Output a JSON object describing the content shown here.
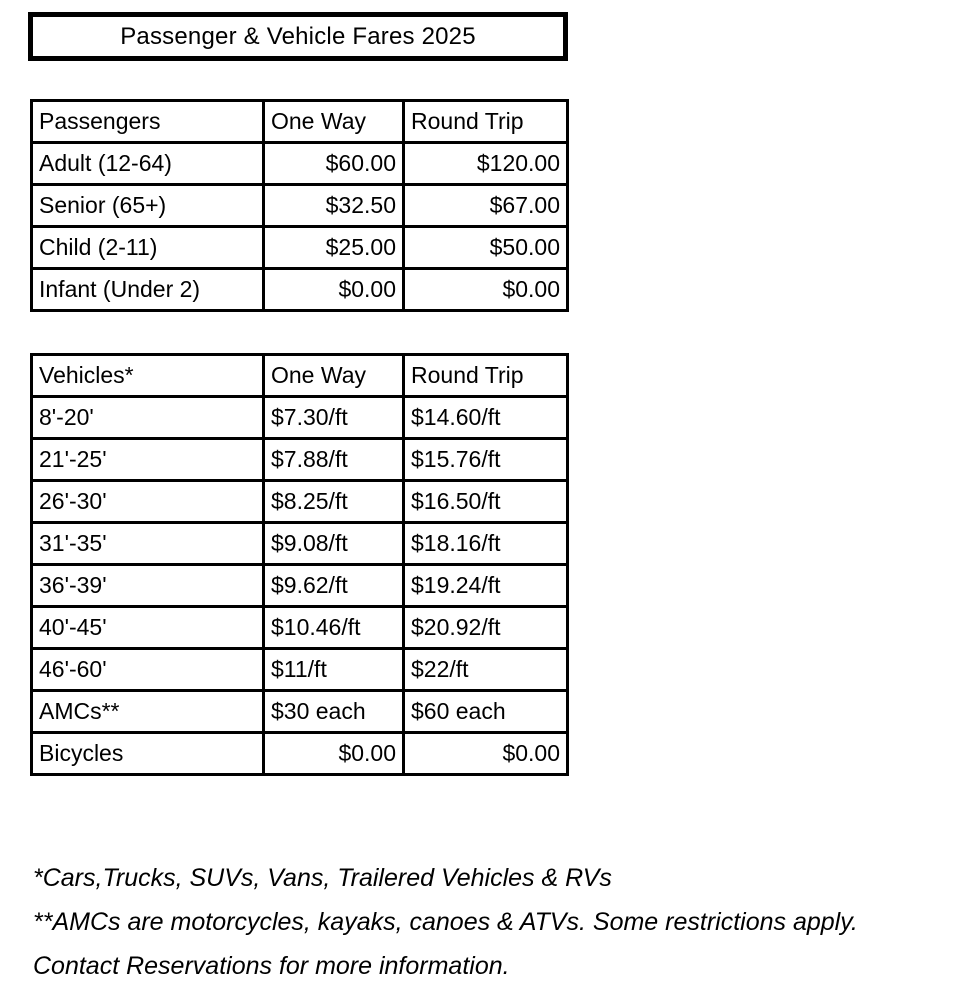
{
  "title": "Passenger & Vehicle Fares 2025",
  "passenger_table": {
    "headers": [
      "Passengers",
      "One Way",
      "Round Trip"
    ],
    "rows": [
      [
        "Adult (12-64)",
        "$60.00",
        "$120.00"
      ],
      [
        "Senior (65+)",
        "$32.50",
        "$67.00"
      ],
      [
        "Child (2-11)",
        "$25.00",
        "$50.00"
      ],
      [
        "Infant (Under 2)",
        "$0.00",
        "$0.00"
      ]
    ]
  },
  "vehicle_table": {
    "headers": [
      "Vehicles*",
      "One Way",
      "Round Trip"
    ],
    "rows": [
      [
        "8'-20'",
        "$7.30/ft",
        "$14.60/ft"
      ],
      [
        "21'-25'",
        "$7.88/ft",
        "$15.76/ft"
      ],
      [
        "26'-30'",
        "$8.25/ft",
        "$16.50/ft"
      ],
      [
        "31'-35'",
        "$9.08/ft",
        "$18.16/ft"
      ],
      [
        "36'-39'",
        "$9.62/ft",
        "$19.24/ft"
      ],
      [
        "40'-45'",
        "$10.46/ft",
        "$20.92/ft"
      ],
      [
        "46'-60'",
        "$11/ft",
        "$22/ft"
      ],
      [
        "AMCs**",
        "$30 each",
        "$60 each"
      ],
      [
        "Bicycles",
        "$0.00",
        "$0.00"
      ]
    ]
  },
  "footnotes": [
    "*Cars,Trucks, SUVs, Vans, Trailered Vehicles & RVs",
    "**AMCs are motorcycles, kayaks, canoes & ATVs. Some restrictions apply.",
    "Contact Reservations for more information."
  ],
  "colors": {
    "text": "#000000",
    "background": "#ffffff",
    "border": "#000000"
  }
}
